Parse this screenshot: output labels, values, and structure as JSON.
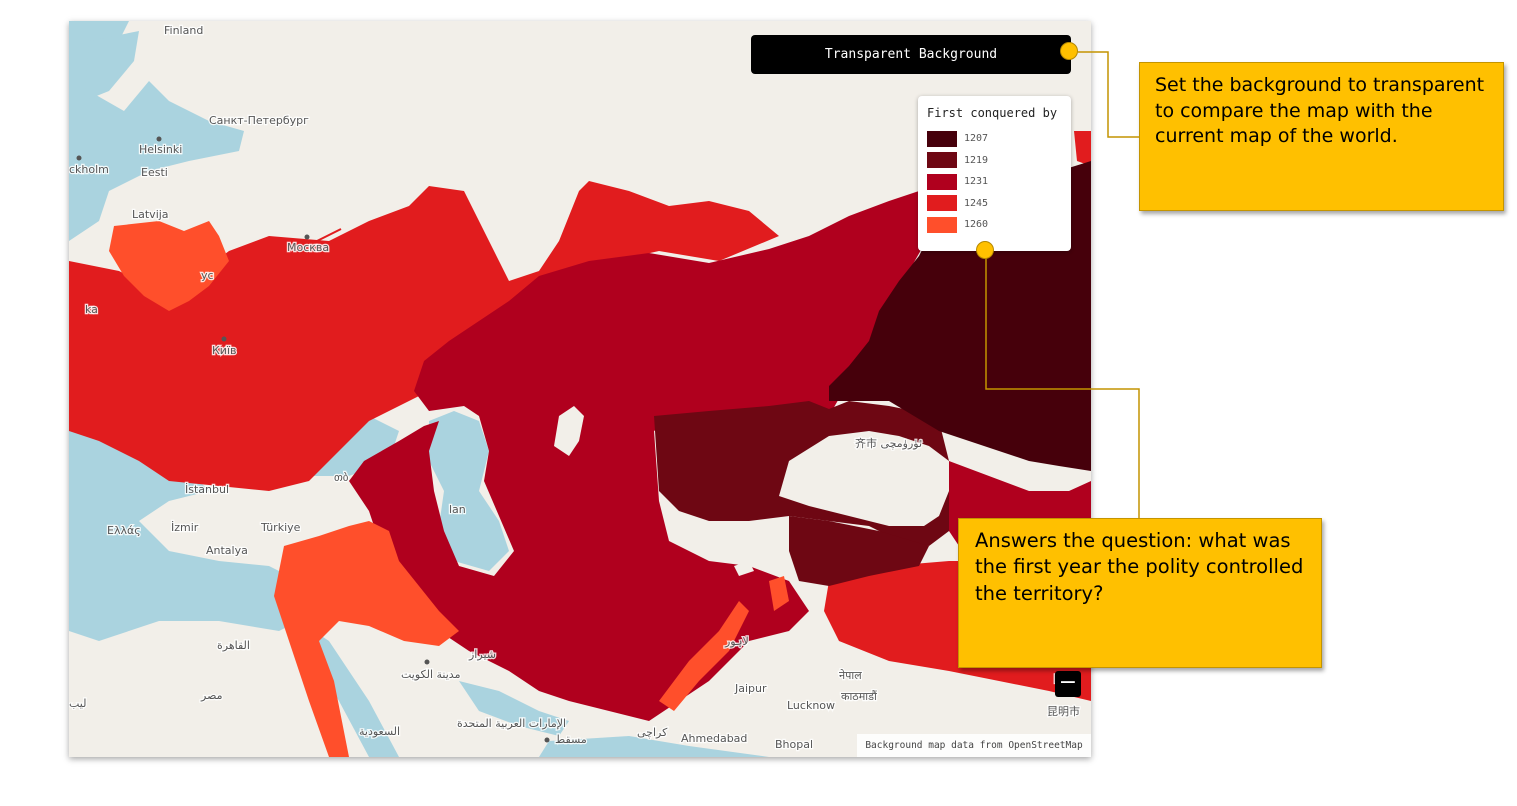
{
  "map": {
    "toggle_button_label": "Transparent Background",
    "legend": {
      "title": "First conquered by",
      "items": [
        {
          "year": "1207",
          "color": "#46000b"
        },
        {
          "year": "1219",
          "color": "#6e0713"
        },
        {
          "year": "1231",
          "color": "#b0001e"
        },
        {
          "year": "1245",
          "color": "#e11c1e"
        },
        {
          "year": "1260",
          "color": "#ff4f2b"
        }
      ]
    },
    "zoom_out_label": "−",
    "attribution": "Background map data from OpenStreetMap",
    "place_labels": {
      "finland": "Finland",
      "spb": "Санкт-Петербург",
      "helsinki": "Helsinki",
      "stockholm": "ckholm",
      "eesti": "Eesti",
      "latvija": "Latvija",
      "moskva": "Москва",
      "kyiv": "Київ",
      "istanbul": "İstanbul",
      "izmir": "İzmir",
      "turkiye": "Türkiye",
      "ellas": "Ελλάς",
      "antalya": "Antalya",
      "cairo": "القاهرة",
      "misr": "مصر",
      "kuwait": "مدينة الكويت",
      "shiraz": "شیراز",
      "uae": "الإمارات العربية المتحدة",
      "saudi": "السعودية",
      "muscat": "مسقط",
      "karachi": "کراچی",
      "lahore": "لاہور",
      "jaipur": "Jaipur",
      "lucknow": "Lucknow",
      "ahmedabad": "Ahmedabad",
      "bhopal": "Bhopal",
      "kathmandu": "काठमाडौं",
      "nepal": "नेपाल",
      "kunming": "昆明市",
      "urumqi": "齐市 ئۈرۈمچى",
      "tbilisi": "თბ",
      "lan": "lan",
      "ka": "ka",
      "rus": "ус",
      "li": "ليب",
      "zhao": "昭"
    }
  },
  "annotations": {
    "background": "Set the background to transparent to compare the map with the current map of the world.",
    "question": "Answers the question: what was the first year the polity controlled the territory?"
  }
}
